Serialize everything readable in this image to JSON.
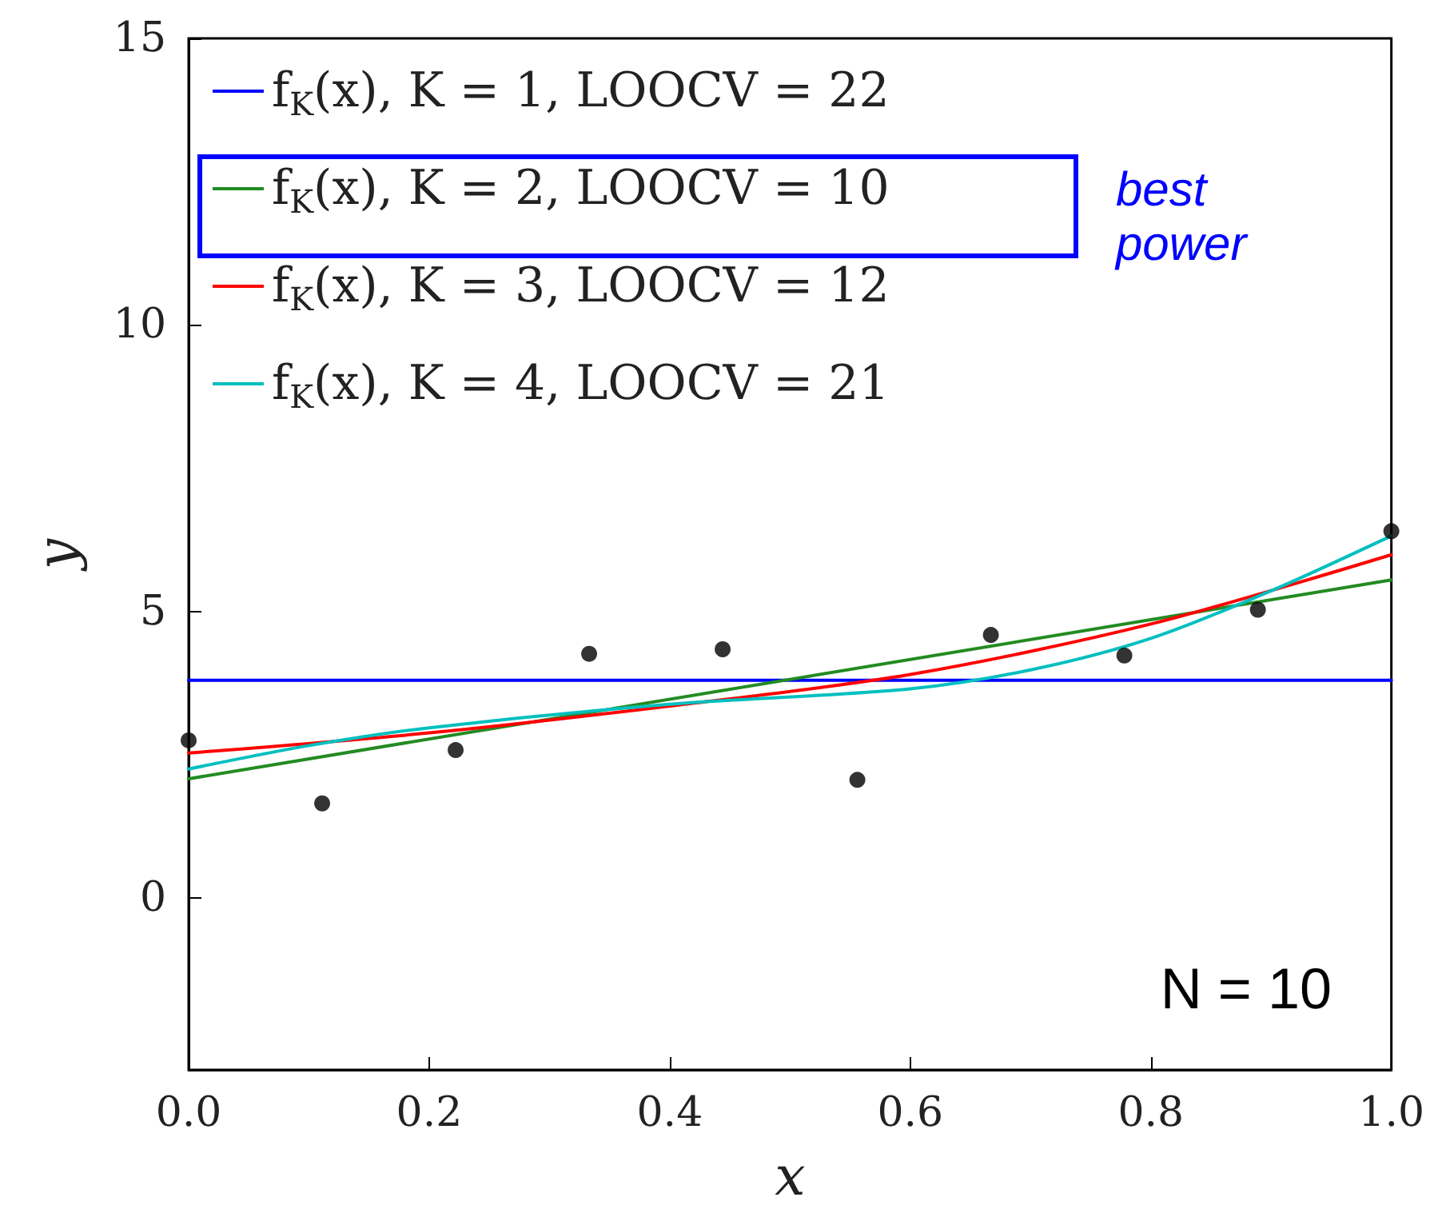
{
  "chart_data": {
    "type": "line",
    "xlabel": "x",
    "ylabel": "y",
    "xlim": [
      0,
      1
    ],
    "ylim": [
      -3,
      15
    ],
    "xticks": [
      {
        "value": 0,
        "label": "0.0"
      },
      0.2,
      0.4,
      0.6,
      0.8,
      {
        "value": 1,
        "label": "1.0"
      }
    ],
    "yticks": [
      0,
      5,
      10,
      15
    ],
    "grid": false,
    "legend": "top left",
    "series": [
      {
        "type": "scatter",
        "marker": "circle",
        "color": "#000000",
        "x": [
          0,
          0.111,
          0.222,
          0.333,
          0.444,
          0.556,
          0.667,
          0.778,
          0.889,
          1.0
        ],
        "values": [
          2.75,
          1.65,
          2.58,
          4.26,
          4.34,
          2.06,
          4.59,
          4.23,
          5.03,
          6.4
        ]
      },
      {
        "name": "f$_{K}$(x), K = 1, LOOCV = 22",
        "color": "#0000ff",
        "x": [
          0,
          1
        ],
        "values": [
          3.8,
          3.8
        ]
      },
      {
        "name": "f$_{K}$(x), K = 2, LOOCV = 10",
        "color": "#228b22",
        "x": [
          0,
          1
        ],
        "values": [
          2.08,
          5.55
        ]
      },
      {
        "name": "f$_{K}$(x), K = 3, LOOCV = 12",
        "color": "#ff0000",
        "x": [
          0,
          0.2,
          0.4,
          0.6,
          0.8,
          1.0
        ],
        "values": [
          2.53,
          2.88,
          3.35,
          3.9,
          4.78,
          5.99
        ]
      },
      {
        "name": "f$_{K}$(x), K = 4, LOOCV = 21",
        "color": "#00bfbf",
        "x": [
          0,
          0.1,
          0.2,
          0.4,
          0.6,
          0.7,
          0.8,
          0.9,
          1.0
        ],
        "values": [
          2.25,
          2.66,
          2.97,
          3.38,
          3.65,
          3.98,
          4.53,
          5.36,
          6.32
        ]
      }
    ],
    "annotations": [
      "best power",
      "N = 10"
    ]
  }
}
